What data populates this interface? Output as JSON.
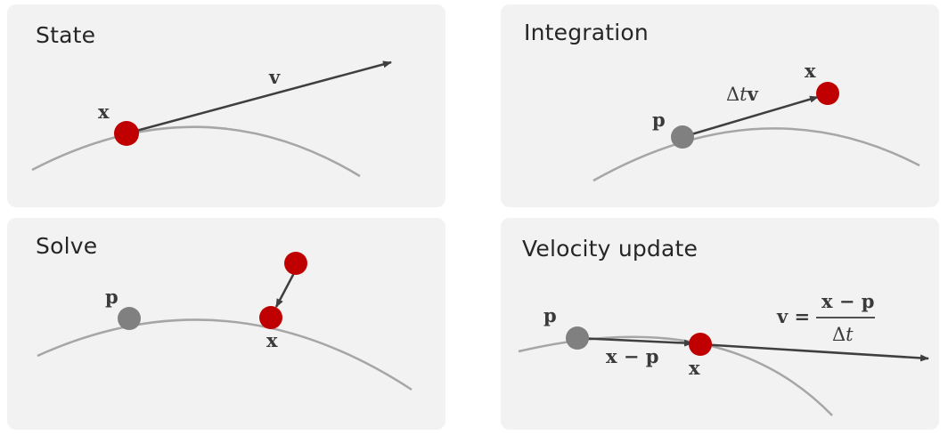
{
  "panels": {
    "state": {
      "title": "State",
      "labels": {
        "x": "x",
        "v": "v"
      }
    },
    "integration": {
      "title": "Integration",
      "labels": {
        "p": "p",
        "x": "x",
        "delta": "Δ",
        "t": "t",
        "v": "v"
      }
    },
    "solve": {
      "title": "Solve",
      "labels": {
        "p": "p",
        "x": "x"
      }
    },
    "velocity_update": {
      "title": "Velocity update",
      "labels": {
        "p": "p",
        "x": "x",
        "x_minus_p": "x − p",
        "v_eq": "v =",
        "numerator": "x − p",
        "denom_delta": "Δ",
        "denom_t": "t"
      }
    }
  },
  "colors": {
    "panel_bg": "#f2f2f2",
    "curve": "#a6a6a6",
    "arrow": "#3f3f3f",
    "current_point": "#c00000",
    "previous_point": "#808080"
  }
}
